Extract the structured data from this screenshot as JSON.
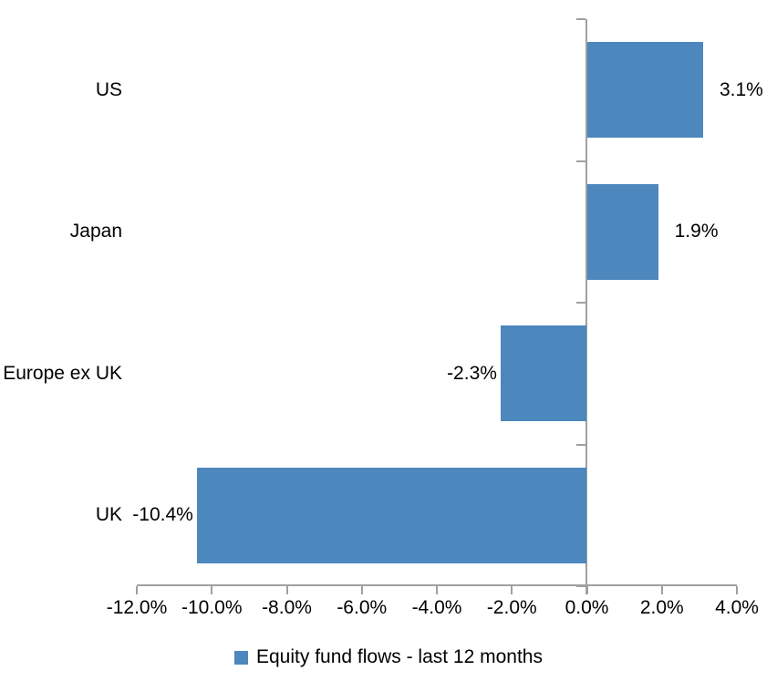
{
  "chart_data": {
    "type": "bar",
    "orientation": "horizontal",
    "title": "",
    "categories": [
      "US",
      "Japan",
      "Europe ex UK",
      "UK"
    ],
    "values": [
      3.1,
      1.9,
      -2.3,
      -10.4
    ],
    "value_labels": [
      "3.1%",
      "1.9%",
      "-2.3%",
      "-10.4%"
    ],
    "x_tick_values": [
      -12,
      -10,
      -8,
      -6,
      -4,
      -2,
      0,
      2,
      4
    ],
    "x_tick_labels": [
      "-12.0%",
      "-10.0%",
      "-8.0%",
      "-6.0%",
      "-4.0%",
      "-2.0%",
      "0.0%",
      "2.0%",
      "4.0%"
    ],
    "xlim": [
      -12,
      4
    ],
    "grid": false,
    "xlabel": "",
    "ylabel": "",
    "legend": "Equity fund flows - last 12 months",
    "legend_position": "bottom-center",
    "colors": {
      "bar": "#4C87BD",
      "axis": "#A0A0A0",
      "text": "#000000",
      "background": "#FFFFFF"
    }
  }
}
